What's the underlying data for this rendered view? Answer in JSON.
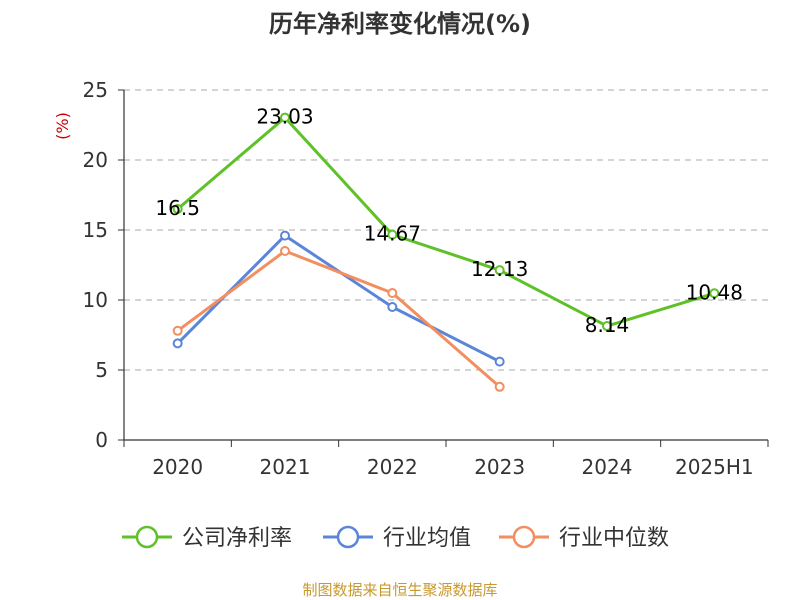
{
  "chart_data": {
    "type": "line",
    "title": "历年净利率变化情况(%)",
    "ylabel": "(%)",
    "xlabel": "",
    "categories": [
      "2020",
      "2021",
      "2022",
      "2023",
      "2024",
      "2025H1"
    ],
    "ylim": [
      0,
      25
    ],
    "yticks": [
      "0",
      "5",
      "10",
      "15",
      "20",
      "25"
    ],
    "grid": "horizontal dashed",
    "legend_position": "bottom",
    "series": [
      {
        "name": "公司净利率",
        "color": "#5ec128",
        "values": [
          16.5,
          23.03,
          14.67,
          12.13,
          8.14,
          10.48
        ],
        "labels": [
          "16.5",
          "23.03",
          "14.67",
          "12.13",
          "8.14",
          "10.48"
        ]
      },
      {
        "name": "行业均值",
        "color": "#5b85d9",
        "values": [
          6.9,
          14.6,
          9.5,
          5.6,
          null,
          null
        ]
      },
      {
        "name": "行业中位数",
        "color": "#f28e5f",
        "values": [
          7.8,
          13.5,
          10.5,
          3.8,
          null,
          null
        ]
      }
    ],
    "source": "制图数据来自恒生聚源数据库"
  }
}
